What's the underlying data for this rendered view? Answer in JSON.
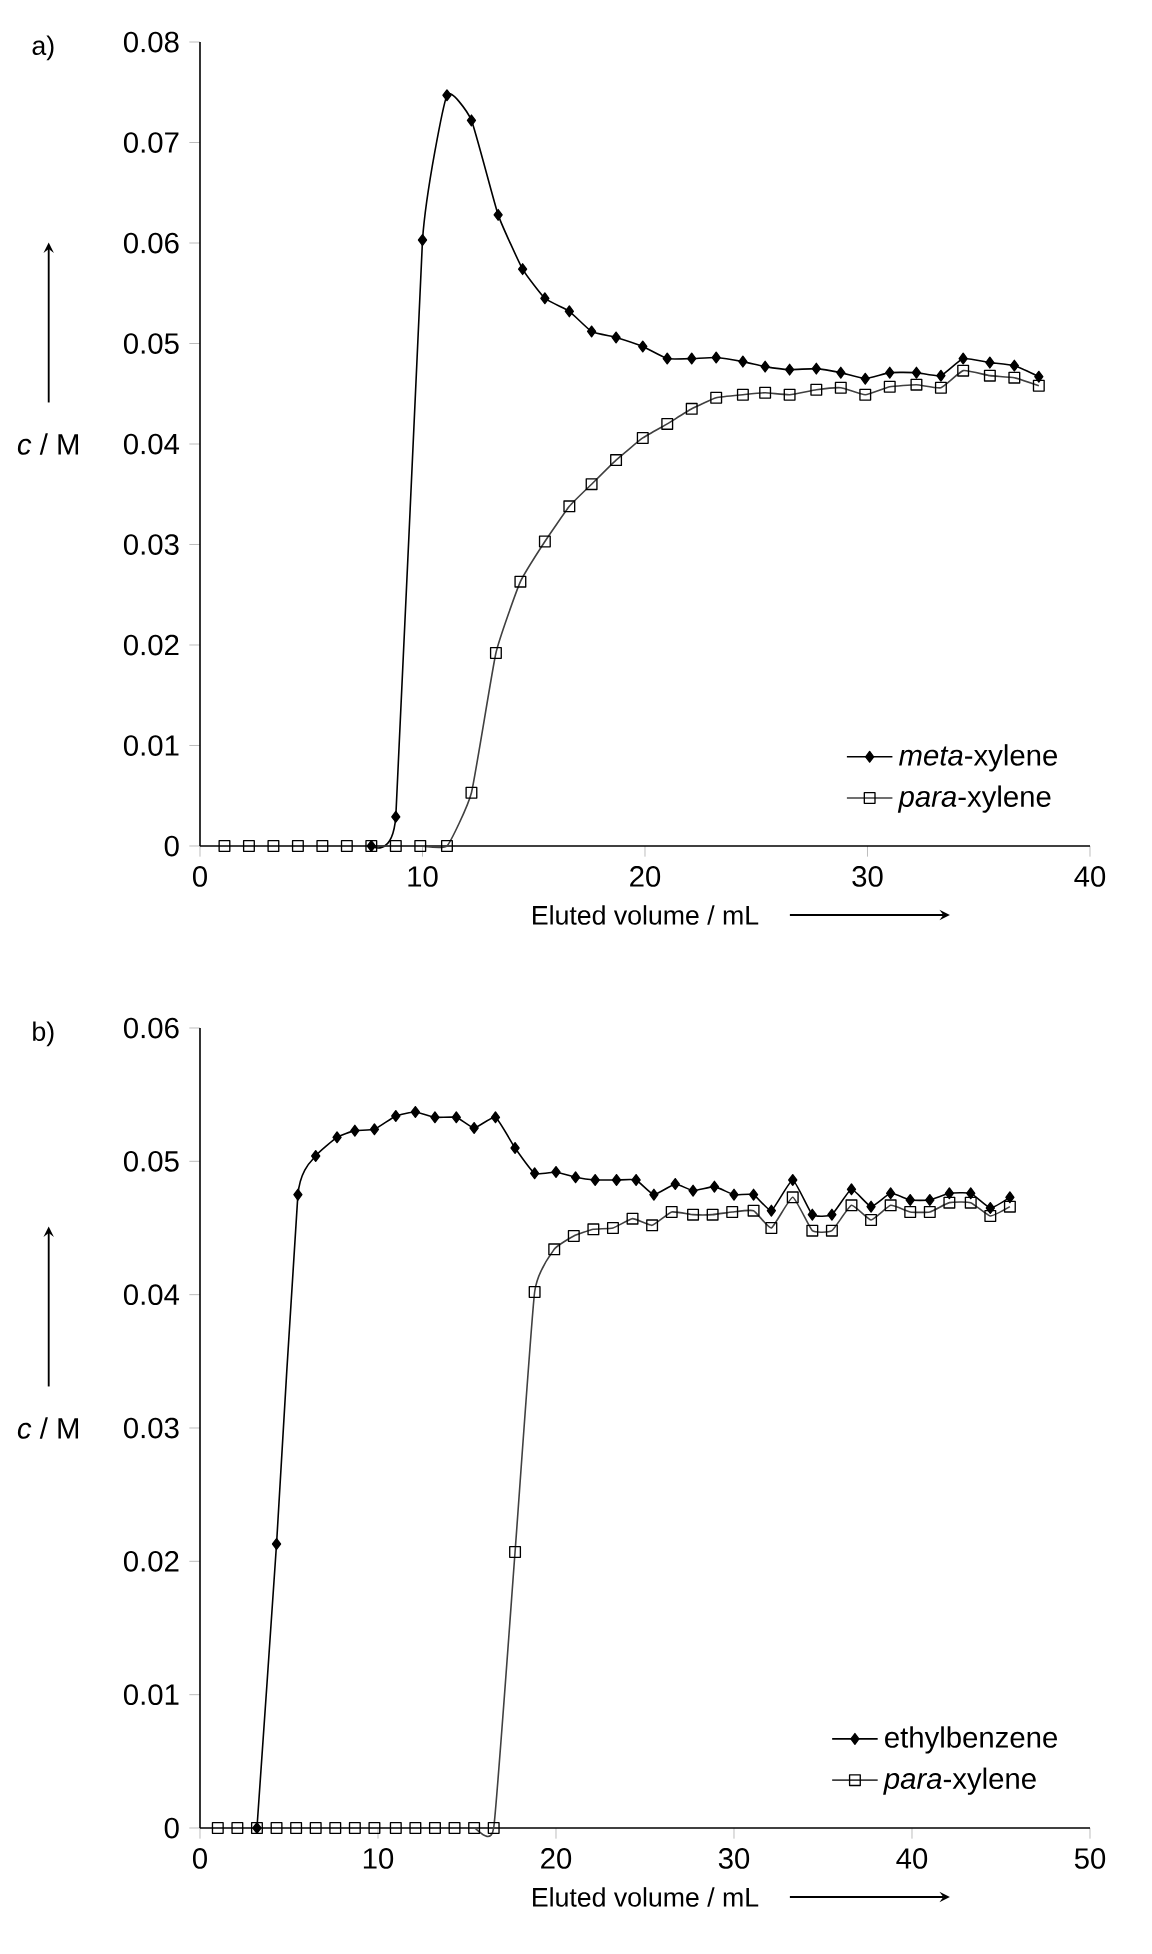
{
  "chart_data": [
    {
      "type": "line",
      "title": "a)",
      "xlabel": "Eluted volume / mL",
      "ylabel": "*c* / M",
      "xlim": [
        0,
        40
      ],
      "xticks": [
        0,
        10,
        20,
        30,
        40
      ],
      "ylim": [
        0,
        0.08
      ],
      "yticks": [
        0,
        0.01,
        0.02,
        0.03,
        0.04,
        0.05,
        0.06,
        0.07,
        0.08
      ],
      "legend": "bottom right",
      "series": [
        {
          "name": "*meta*-xylene",
          "color": "#000000",
          "marker": "diamond",
          "x": [
            7.7,
            8.8,
            10.0,
            11.1,
            12.2,
            13.4,
            14.5,
            15.5,
            16.6,
            17.6,
            18.7,
            19.9,
            21.0,
            22.1,
            23.2,
            24.4,
            25.4,
            26.5,
            27.7,
            28.8,
            29.9,
            31.0,
            32.2,
            33.3,
            34.3,
            35.5,
            36.6,
            37.7
          ],
          "values": [
            0,
            0.0029,
            0.0603,
            0.0747,
            0.0722,
            0.0628,
            0.0574,
            0.0545,
            0.0532,
            0.0512,
            0.0506,
            0.0497,
            0.0485,
            0.0485,
            0.0486,
            0.0482,
            0.0477,
            0.0474,
            0.0475,
            0.0471,
            0.0465,
            0.0471,
            0.0471,
            0.0468,
            0.0485,
            0.0481,
            0.0478,
            0.0467
          ]
        },
        {
          "name": "*para*-xylene",
          "color": "#404040",
          "marker": "square",
          "x": [
            1.1,
            2.2,
            3.3,
            4.4,
            5.5,
            6.6,
            7.7,
            8.8,
            9.9,
            11.1,
            12.2,
            13.3,
            14.4,
            15.5,
            16.6,
            17.6,
            18.7,
            19.9,
            21.0,
            22.1,
            23.2,
            24.4,
            25.4,
            26.5,
            27.7,
            28.8,
            29.9,
            31.0,
            32.2,
            33.3,
            34.3,
            35.5,
            36.6,
            37.7
          ],
          "values": [
            0,
            0,
            0,
            0,
            0,
            0,
            0,
            0,
            0,
            0,
            0.0053,
            0.0192,
            0.0263,
            0.0303,
            0.0338,
            0.036,
            0.0384,
            0.0406,
            0.042,
            0.0435,
            0.0446,
            0.0449,
            0.0451,
            0.0449,
            0.0454,
            0.0456,
            0.0449,
            0.0457,
            0.0459,
            0.0456,
            0.0473,
            0.0468,
            0.0466,
            0.0458
          ]
        }
      ]
    },
    {
      "type": "line",
      "title": "b)",
      "xlabel": "Eluted volume / mL",
      "ylabel": "*c* / M",
      "xlim": [
        0,
        50
      ],
      "xticks": [
        0,
        10,
        20,
        30,
        40,
        50
      ],
      "ylim": [
        0,
        0.06
      ],
      "yticks": [
        0,
        0.01,
        0.02,
        0.03,
        0.04,
        0.05,
        0.06
      ],
      "legend": "bottom right",
      "series": [
        {
          "name": "ethylbenzene",
          "color": "#000000",
          "marker": "diamond",
          "x": [
            3.2,
            4.3,
            5.5,
            6.5,
            7.7,
            8.7,
            9.8,
            11.0,
            12.1,
            13.2,
            14.4,
            15.4,
            16.6,
            17.7,
            18.8,
            20.0,
            21.1,
            22.2,
            23.4,
            24.5,
            25.5,
            26.7,
            27.7,
            28.9,
            30.0,
            31.1,
            32.1,
            33.3,
            34.4,
            35.5,
            36.6,
            37.7,
            38.8,
            39.9,
            41.0,
            42.1,
            43.3,
            44.4,
            45.5
          ],
          "values": [
            0,
            0.0213,
            0.0475,
            0.0504,
            0.0518,
            0.0523,
            0.0524,
            0.0534,
            0.0537,
            0.0533,
            0.0533,
            0.0525,
            0.0533,
            0.051,
            0.0491,
            0.0492,
            0.0488,
            0.0486,
            0.0486,
            0.0486,
            0.0475,
            0.0483,
            0.0478,
            0.0481,
            0.0475,
            0.0475,
            0.0463,
            0.0486,
            0.046,
            0.046,
            0.0479,
            0.0466,
            0.0476,
            0.0471,
            0.0471,
            0.0476,
            0.0476,
            0.0465,
            0.0473
          ]
        },
        {
          "name": "*para*-xylene",
          "color": "#404040",
          "marker": "square",
          "x": [
            1.0,
            2.1,
            3.2,
            4.3,
            5.4,
            6.5,
            7.6,
            8.7,
            9.8,
            11.0,
            12.1,
            13.2,
            14.3,
            15.4,
            16.5,
            17.7,
            18.8,
            19.9,
            21.0,
            22.1,
            23.2,
            24.3,
            25.4,
            26.5,
            27.7,
            28.8,
            29.9,
            31.1,
            32.1,
            33.3,
            34.4,
            35.5,
            36.6,
            37.7,
            38.8,
            39.9,
            41.0,
            42.1,
            43.3,
            44.4,
            45.5
          ],
          "values": [
            0,
            0,
            0,
            0,
            0,
            0,
            0,
            0,
            0,
            0,
            0,
            0,
            0,
            0,
            0,
            0.0207,
            0.0402,
            0.0434,
            0.0444,
            0.0449,
            0.045,
            0.0457,
            0.0452,
            0.0462,
            0.046,
            0.046,
            0.0462,
            0.0463,
            0.045,
            0.0473,
            0.0448,
            0.0448,
            0.0467,
            0.0456,
            0.0467,
            0.0462,
            0.0462,
            0.0469,
            0.0469,
            0.0459,
            0.0466
          ]
        }
      ]
    }
  ]
}
